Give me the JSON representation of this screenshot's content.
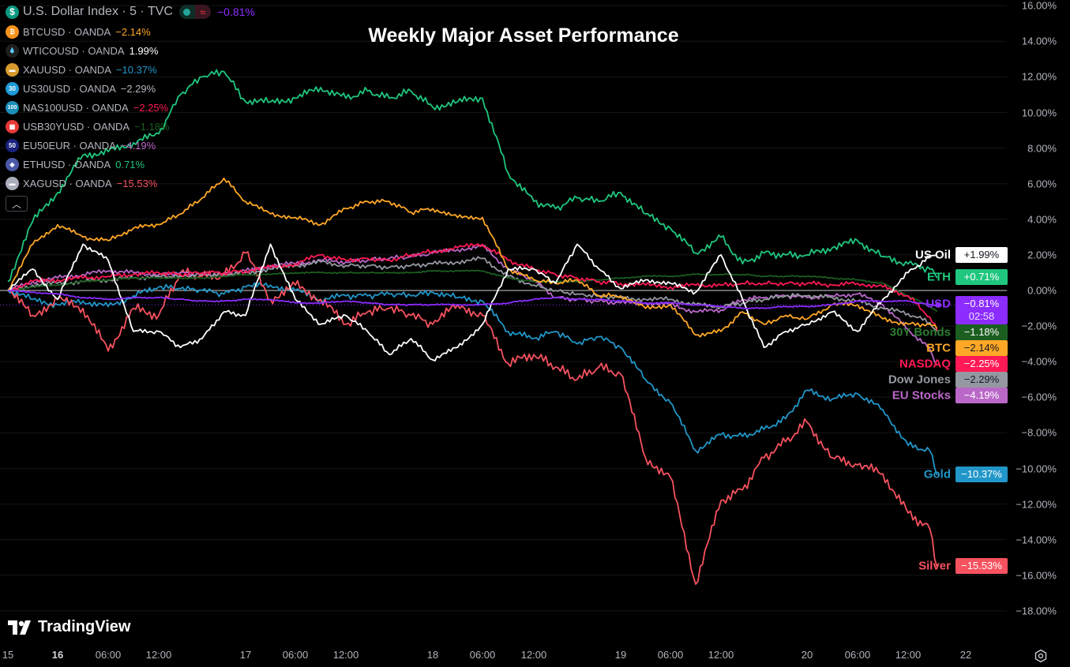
{
  "title": "Weekly Major Asset Performance",
  "legend": {
    "main": {
      "name": "U.S. Dollar Index · 5 · TVC",
      "value": "−0.81%",
      "icon": "dollar-icon",
      "color": "#8c2cff",
      "toggle_icon": "approx-icon"
    },
    "items": [
      {
        "name": "BTCUSD · OANDA",
        "value": "−2.14%",
        "icon": "bitcoin-icon",
        "icon_bg": "#f7931a",
        "glyph": "₿",
        "color": "#ffa726"
      },
      {
        "name": "WTICOUSD · OANDA",
        "value": "1.99%",
        "icon": "oil-drop-icon",
        "icon_bg": "#1e1e1e",
        "glyph": "💧",
        "color": "#ffffff"
      },
      {
        "name": "XAUUSD · OANDA",
        "value": "−10.37%",
        "icon": "gold-bar-icon",
        "icon_bg": "#d69a2d",
        "glyph": "▬",
        "color": "#2196c8"
      },
      {
        "name": "US30USD · OANDA",
        "value": "−2.29%",
        "icon": "us30-icon",
        "icon_bg": "#1e9bd7",
        "glyph": "30",
        "color": "#b2b5be"
      },
      {
        "name": "NAS100USD · OANDA",
        "value": "−2.25%",
        "icon": "nas100-icon",
        "icon_bg": "#1b8fb8",
        "glyph": "100",
        "color": "#ff1a55"
      },
      {
        "name": "USB30YUSD · OANDA",
        "value": "−1.18%",
        "icon": "us-flag-icon",
        "icon_bg": "#e53935",
        "glyph": "▦",
        "color": "#1b5e20"
      },
      {
        "name": "EU50EUR · OANDA",
        "value": "−4.19%",
        "icon": "eu50-icon",
        "icon_bg": "#1a237e",
        "glyph": "50",
        "color": "#ba68c8"
      },
      {
        "name": "ETHUSD · OANDA",
        "value": "0.71%",
        "icon": "ethereum-icon",
        "icon_bg": "#4a5aa8",
        "glyph": "◆",
        "color": "#1fc77e"
      },
      {
        "name": "XAGUSD · OANDA",
        "value": "−15.53%",
        "icon": "silver-bar-icon",
        "icon_bg": "#a9adb8",
        "glyph": "▬",
        "color": "#f7525f"
      }
    ],
    "collapse_icon": "chevron-up-icon"
  },
  "chart_data": {
    "type": "line",
    "title": "Weekly Major Asset Performance",
    "ylim": [
      -19,
      16.5
    ],
    "y_ticks": [
      "16.00%",
      "14.00%",
      "12.00%",
      "10.00%",
      "8.00%",
      "6.00%",
      "4.00%",
      "2.00%",
      "0.00%",
      "−2.00%",
      "−4.00%",
      "−6.00%",
      "−8.00%",
      "−10.00%",
      "−12.00%",
      "−14.00%",
      "−16.00%",
      "−18.00%"
    ],
    "x_ticks": [
      {
        "label": "15",
        "t": "15 00:00",
        "day": false
      },
      {
        "label": "16",
        "t": "16 00:00",
        "day": true
      },
      {
        "label": "06:00",
        "t": "16 06:00"
      },
      {
        "label": "12:00",
        "t": "16 12:00"
      },
      {
        "label": "17",
        "t": "17 00:00"
      },
      {
        "label": "06:00",
        "t": "17 06:00"
      },
      {
        "label": "12:00",
        "t": "17 12:00"
      },
      {
        "label": "18",
        "t": "18 00:00"
      },
      {
        "label": "06:00",
        "t": "18 06:00"
      },
      {
        "label": "12:00",
        "t": "18 12:00"
      },
      {
        "label": "19",
        "t": "19 00:00"
      },
      {
        "label": "06:00",
        "t": "19 06:00"
      },
      {
        "label": "12:00",
        "t": "19 12:00"
      },
      {
        "label": "20",
        "t": "20 00:00"
      },
      {
        "label": "06:00",
        "t": "20 06:00"
      },
      {
        "label": "12:00",
        "t": "20 12:00"
      },
      {
        "label": "22",
        "t": "22 00:00"
      }
    ],
    "grid": true,
    "x": [
      "15 00:00",
      "15 12:00",
      "16 00:00",
      "16 03:00",
      "16 06:00",
      "16 09:00",
      "16 12:00",
      "16 15:00",
      "16 18:00",
      "16 21:00",
      "17 00:00",
      "17 03:00",
      "17 06:00",
      "17 09:00",
      "17 12:00",
      "17 15:00",
      "17 18:00",
      "17 21:00",
      "18 00:00",
      "18 03:00",
      "18 06:00",
      "18 09:00",
      "18 12:00",
      "18 15:00",
      "18 18:00",
      "18 21:00",
      "19 00:00",
      "19 03:00",
      "19 06:00",
      "19 09:00",
      "19 12:00",
      "19 15:00",
      "19 18:00",
      "19 21:00",
      "20 00:00",
      "20 03:00",
      "20 06:00",
      "20 09:00",
      "20 12:00",
      "20 15:00",
      "20 16:00"
    ],
    "series": [
      {
        "name": "ETH",
        "color": "#1fc77e",
        "badge": "+0.71%",
        "badge_text": "#ffffff",
        "values": [
          0.5,
          3.9,
          5.5,
          7.6,
          7.8,
          8.3,
          8.8,
          11,
          12,
          12.3,
          10.6,
          10.6,
          10.8,
          11.4,
          10.8,
          11.2,
          10.8,
          11.2,
          10.3,
          10.6,
          10.8,
          6.6,
          5,
          4.6,
          5.2,
          5,
          5.5,
          4.3,
          3.5,
          2.1,
          3,
          1.5,
          2.1,
          2,
          2,
          2.4,
          2.8,
          1.9,
          1.5,
          1.2,
          0.71
        ]
      },
      {
        "name": "Gold",
        "color": "#2196c8",
        "badge": "−10.37%",
        "badge_text": "#ffffff",
        "values": [
          0,
          -0.5,
          -0.8,
          -0.6,
          -0.9,
          -0.3,
          0.2,
          0.1,
          0,
          -0.2,
          0.2,
          0.3,
          0,
          -0.5,
          -0.3,
          -0.3,
          -0.2,
          -0.3,
          -0.1,
          -0.4,
          -0.6,
          -2.3,
          -2.7,
          -2.3,
          -3,
          -2.6,
          -3.2,
          -5,
          -6.3,
          -9,
          -8.1,
          -8.2,
          -7.8,
          -7.2,
          -5.6,
          -6.1,
          -5.8,
          -6.7,
          -8.7,
          -9,
          -10.37
        ]
      },
      {
        "name": "Silver",
        "color": "#f7525f",
        "badge": "−15.53%",
        "badge_text": "#ffffff",
        "values": [
          0,
          -1.4,
          -0.5,
          -1,
          -3.4,
          -1,
          -1.4,
          1,
          0.8,
          0.8,
          2.1,
          -0.5,
          0.3,
          -0.5,
          -1.9,
          -1.2,
          -1,
          -1.4,
          -1.9,
          -0.8,
          -1.4,
          -4.1,
          -3.6,
          -4.3,
          -5,
          -4.3,
          -4.7,
          -9.4,
          -10.5,
          -16.5,
          -11.8,
          -11.2,
          -9.4,
          -8.5,
          -7.4,
          -9.4,
          -9.8,
          -10.3,
          -12.5,
          -13.4,
          -15.53
        ]
      },
      {
        "name": "EU Stocks",
        "color": "#ba68c8",
        "badge": "−4.19%",
        "badge_text": "#ffffff",
        "values": [
          0,
          0.5,
          0.7,
          0.9,
          1.1,
          1,
          0.9,
          1,
          0.9,
          0.9,
          1.1,
          1.4,
          1.5,
          1.7,
          1.6,
          1.7,
          1.8,
          1.9,
          2.1,
          2.3,
          2.5,
          1.2,
          0.6,
          -0.4,
          -0.5,
          -0.6,
          -0.7,
          -0.7,
          -0.8,
          -1.2,
          -1.1,
          -0.5,
          -0.4,
          -0.3,
          -0.4,
          -0.3,
          -0.2,
          -0.8,
          -2.2,
          -3.3,
          -4.19
        ]
      },
      {
        "name": "Dow Jones",
        "color": "#9598a1",
        "badge": "−2.29%",
        "badge_text": "#131722",
        "values": [
          0,
          0.3,
          0.4,
          0.5,
          0.6,
          0.7,
          0.8,
          0.8,
          0.9,
          0.9,
          1,
          1.2,
          1.4,
          1.6,
          1.4,
          1.4,
          1.3,
          1.4,
          1.5,
          1.6,
          1.8,
          0.8,
          0.3,
          0,
          -0.2,
          -0.3,
          -0.4,
          -0.5,
          -0.5,
          -0.8,
          -0.9,
          -0.7,
          -0.5,
          -0.3,
          -0.3,
          -0.4,
          -0.6,
          -1,
          -1.3,
          -1.8,
          -2.29
        ]
      },
      {
        "name": "30Y Bonds",
        "color": "#1b5e20",
        "label_color": "#2e7d32",
        "badge": "−1.18%",
        "badge_text": "#ffffff",
        "values": [
          0,
          0.2,
          0.3,
          0.5,
          0.6,
          0.7,
          0.7,
          0.7,
          0.7,
          0.8,
          0.9,
          0.9,
          1,
          1,
          1,
          1,
          1,
          1,
          1.1,
          1.1,
          1.1,
          0.7,
          0.5,
          0.5,
          0.5,
          0.6,
          0.7,
          0.8,
          0.8,
          0.9,
          0.9,
          0.9,
          0.8,
          0.8,
          0.8,
          0.7,
          0.6,
          0.4,
          -0.3,
          -0.9,
          -1.18
        ]
      },
      {
        "name": "NASDAQ",
        "color": "#ff1a55",
        "badge": "−2.25%",
        "badge_text": "#ffffff",
        "values": [
          0,
          0.5,
          0.6,
          0.7,
          0.8,
          0.9,
          1,
          0.9,
          1,
          1,
          1.1,
          1.3,
          1.5,
          2,
          1.7,
          1.8,
          1.7,
          2,
          2.2,
          2.4,
          2.6,
          1.7,
          1.2,
          0.9,
          0.7,
          0.5,
          0.4,
          0.3,
          0.2,
          0.3,
          0.3,
          0.4,
          0.4,
          0.4,
          0.4,
          0.3,
          0.4,
          0.2,
          -0.3,
          -1.5,
          -2.25
        ]
      },
      {
        "name": "BTC",
        "color": "#ffa726",
        "badge": "−2.14%",
        "badge_text": "#131722",
        "values": [
          0,
          2.6,
          3.7,
          3,
          2.8,
          3.5,
          3.7,
          4.3,
          5.2,
          6.3,
          5,
          4.3,
          4.1,
          3.7,
          4.6,
          5,
          5,
          4.4,
          4.6,
          4.1,
          4.1,
          1.2,
          0.6,
          0.4,
          0.6,
          -0.3,
          -0.3,
          -1,
          -0.8,
          -2.5,
          -2.3,
          -1.2,
          -1.9,
          -1.4,
          -1.6,
          -0.8,
          -0.8,
          -1.6,
          -1.9,
          -1.9,
          -2.14
        ]
      },
      {
        "name": "US Oil",
        "color": "#ffffff",
        "badge": "+1.99%",
        "badge_text": "#131722",
        "values": [
          0,
          1.2,
          -0.5,
          2.6,
          1.7,
          -2.3,
          -2.3,
          -3.2,
          -2.7,
          -1.2,
          -1.4,
          2.6,
          -0.5,
          -1.9,
          -1.4,
          -2.3,
          -3.6,
          -2.7,
          -3.9,
          -3.2,
          -1.9,
          1.2,
          1.2,
          0.4,
          2.6,
          1.2,
          0.1,
          0.6,
          0.4,
          -0.1,
          2,
          -0.5,
          -3.2,
          -2.3,
          -1.9,
          -1.2,
          -2.3,
          -0.5,
          1,
          1.9,
          1.99
        ]
      },
      {
        "name": "USD",
        "color": "#8c2cff",
        "badge": "−0.81%",
        "badge_sub": "02:58",
        "badge_text": "#ffffff",
        "values": [
          0,
          -0.1,
          -0.2,
          -0.4,
          -0.5,
          -0.4,
          -0.4,
          -0.5,
          -0.6,
          -0.6,
          -0.5,
          -0.5,
          -0.7,
          -0.7,
          -0.6,
          -0.7,
          -0.8,
          -0.8,
          -0.8,
          -0.8,
          -0.8,
          -0.7,
          -0.5,
          -0.4,
          -0.5,
          -0.5,
          -0.6,
          -0.7,
          -0.7,
          -0.8,
          -0.9,
          -1,
          -1,
          -0.9,
          -0.9,
          -0.8,
          -0.6,
          -0.6,
          -0.6,
          -0.8,
          -0.81
        ]
      }
    ]
  },
  "watermark": "TradingView",
  "settings_icon": "gear-icon"
}
